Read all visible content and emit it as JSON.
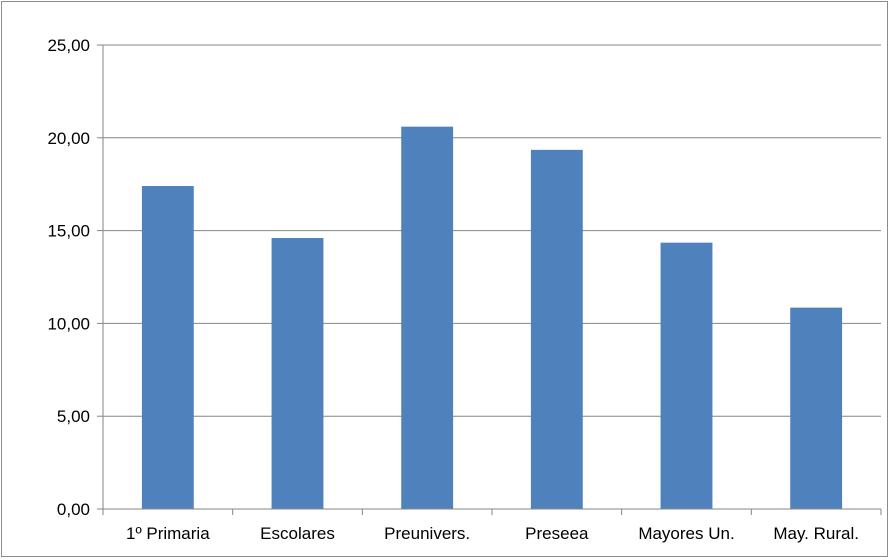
{
  "chart_data": {
    "type": "bar",
    "categories": [
      "1º Primaria",
      "Escolares",
      "Preunivers.",
      "Preseea",
      "Mayores Un.",
      "May.  Rural."
    ],
    "values": [
      17.4,
      14.6,
      20.6,
      19.35,
      14.35,
      10.85
    ],
    "y_ticks": [
      "0,00",
      "5,00",
      "10,00",
      "15,00",
      "20,00",
      "25,00"
    ],
    "ylim": [
      0,
      25
    ],
    "title": "",
    "xlabel": "",
    "ylabel": "",
    "grid": true,
    "legend": "none",
    "bar_color": "#4f81bd",
    "grid_color": "#868686"
  }
}
